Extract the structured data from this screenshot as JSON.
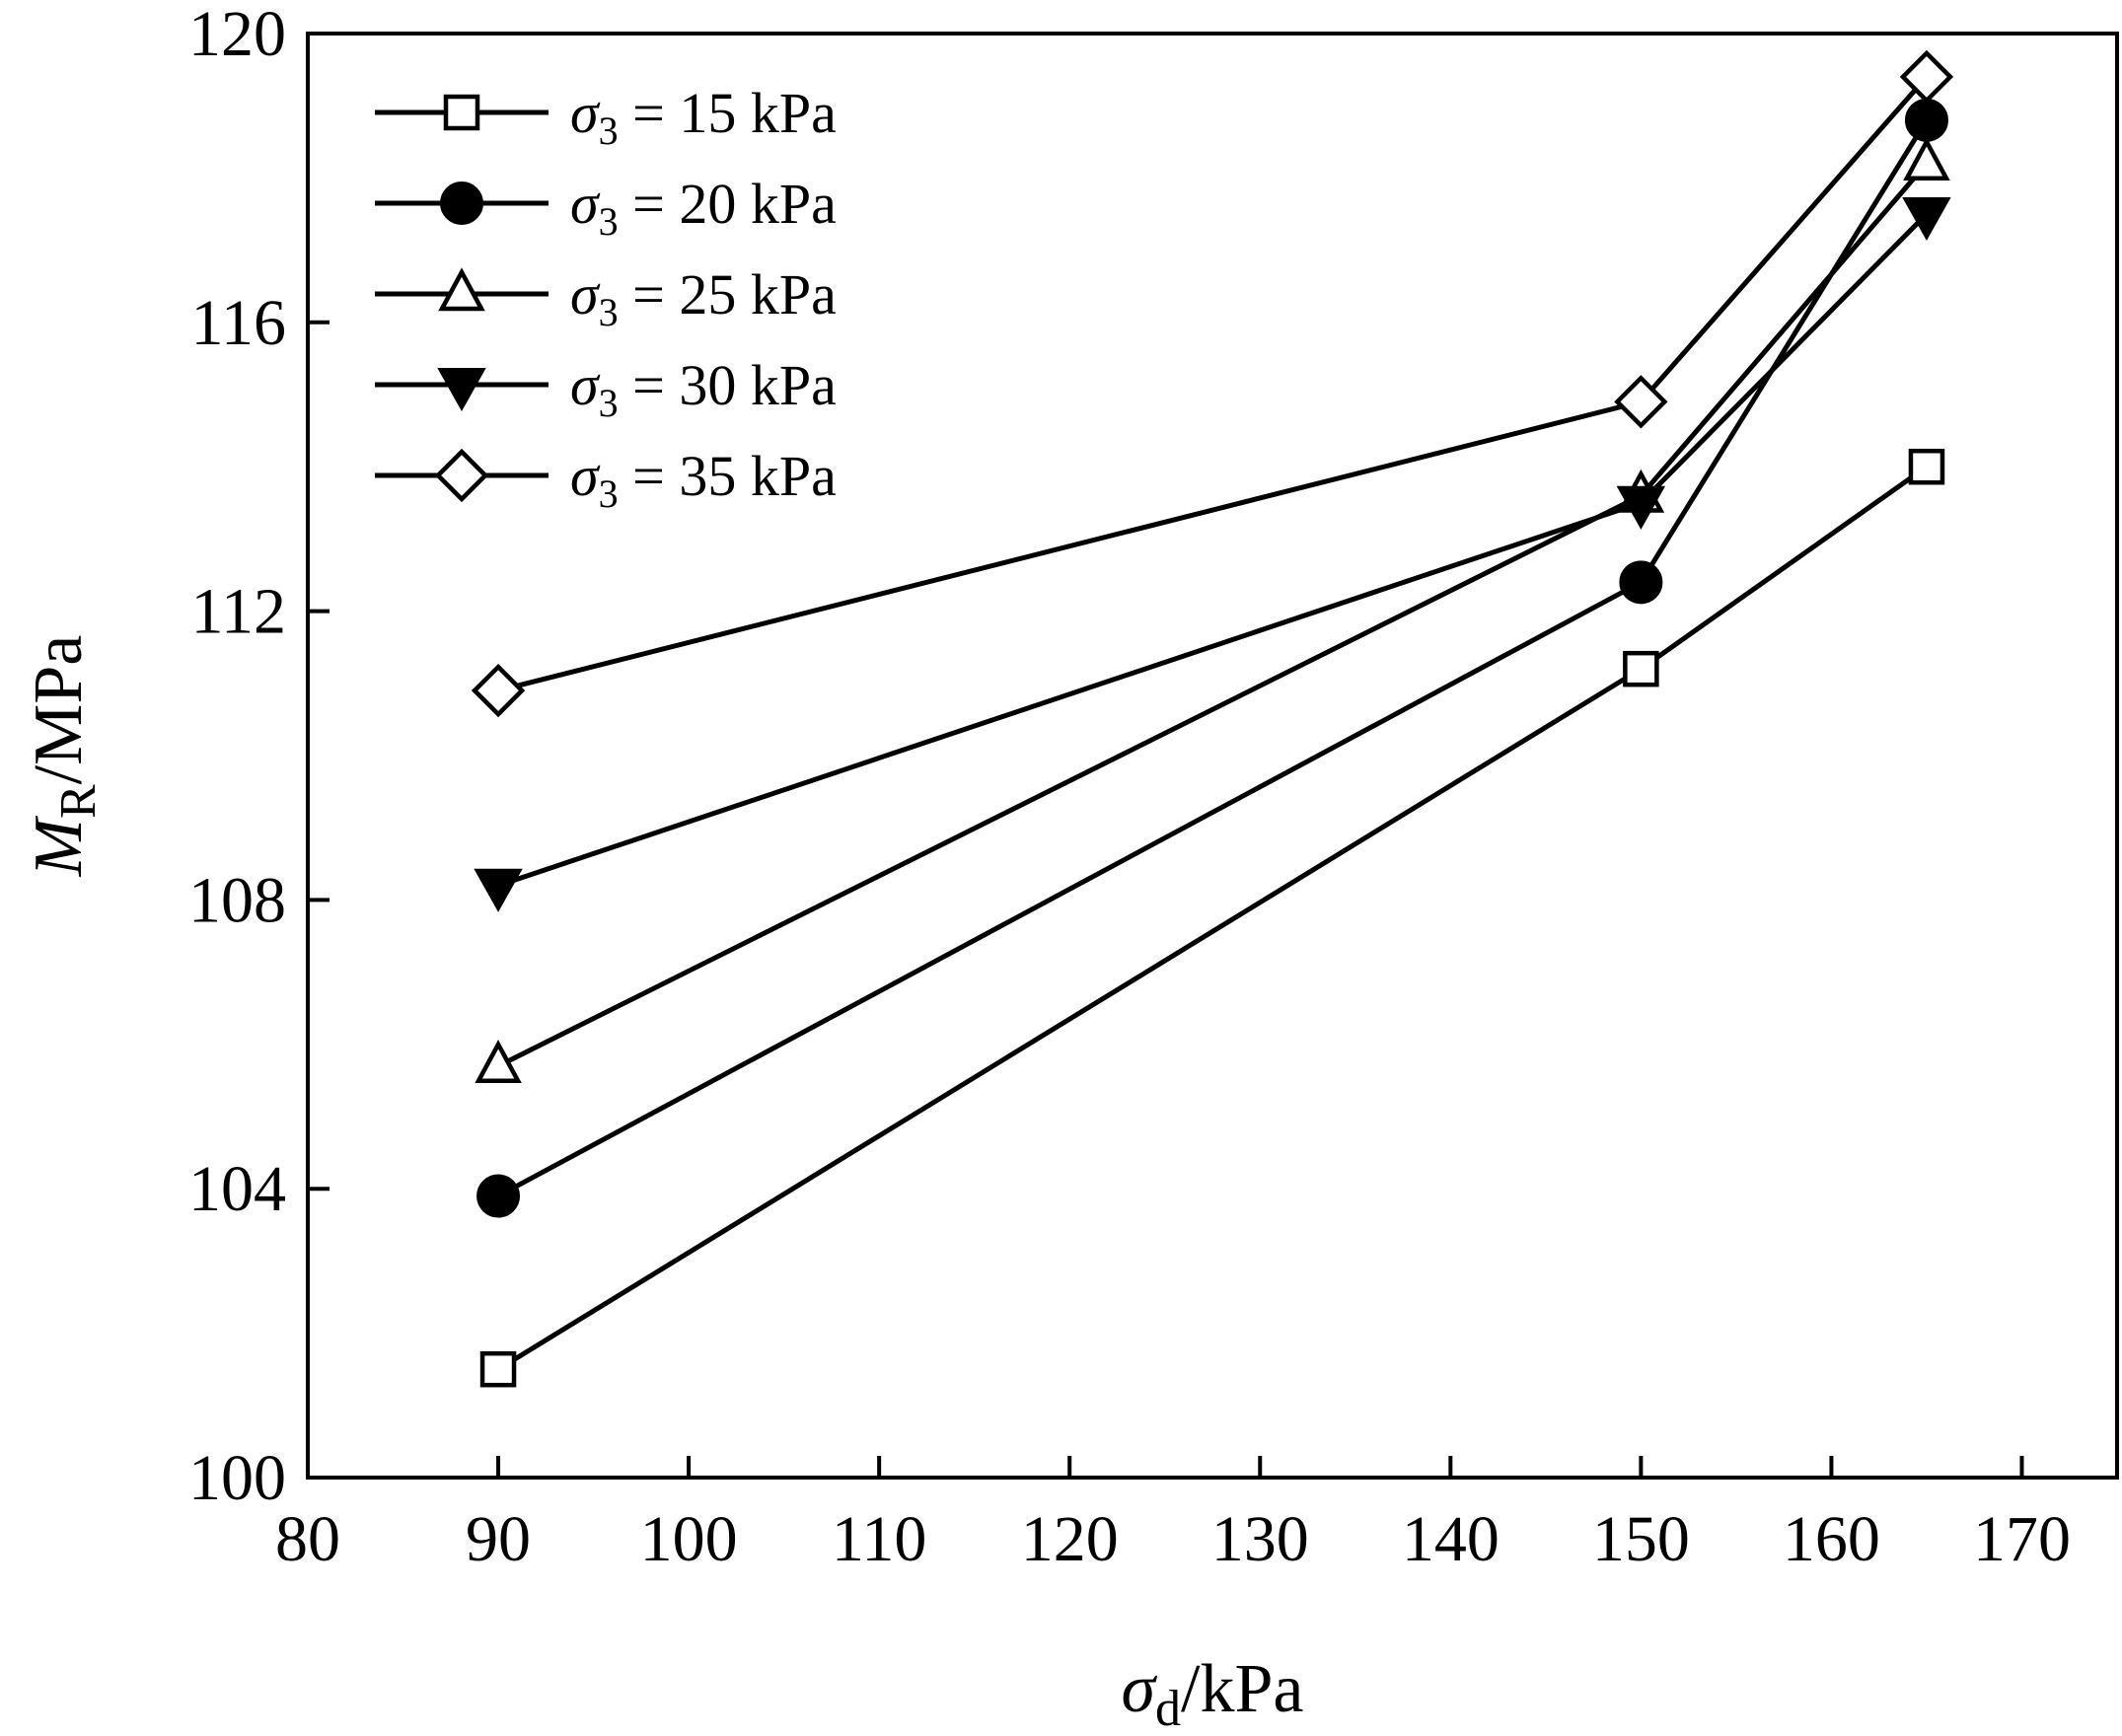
{
  "chart_data": {
    "type": "line",
    "xlabel": {
      "symbol": "σ",
      "sub": "d",
      "unit": "/kPa"
    },
    "ylabel": {
      "symbol": "M",
      "sub": "R",
      "unit": "/MPa"
    },
    "xlim": [
      80,
      175
    ],
    "ylim": [
      100,
      120
    ],
    "xticks": [
      80,
      90,
      100,
      110,
      120,
      130,
      140,
      150,
      160,
      170
    ],
    "yticks": [
      100,
      104,
      108,
      112,
      116,
      120
    ],
    "grid": false,
    "legend_position": "top-left",
    "series": [
      {
        "name": "15 kPa",
        "label_prefix": "σ",
        "label_sub": "3",
        "label_rest": " = 15 kPa",
        "marker": "square-open",
        "x": [
          90,
          150,
          165
        ],
        "y": [
          101.5,
          111.2,
          114.0
        ]
      },
      {
        "name": "20 kPa",
        "label_prefix": "σ",
        "label_sub": "3",
        "label_rest": " = 20 kPa",
        "marker": "circle-filled",
        "x": [
          90,
          150,
          165
        ],
        "y": [
          103.9,
          112.4,
          118.8
        ]
      },
      {
        "name": "25 kPa",
        "label_prefix": "σ",
        "label_sub": "3",
        "label_rest": " = 25 kPa",
        "marker": "triangle-up-open",
        "x": [
          90,
          150,
          165
        ],
        "y": [
          105.7,
          113.6,
          118.2
        ]
      },
      {
        "name": "30 kPa",
        "label_prefix": "σ",
        "label_sub": "3",
        "label_rest": " = 30 kPa",
        "marker": "triangle-down-filled",
        "x": [
          90,
          150,
          165
        ],
        "y": [
          108.2,
          113.5,
          117.5
        ]
      },
      {
        "name": "35 kPa",
        "label_prefix": "σ",
        "label_sub": "3",
        "label_rest": " = 35 kPa",
        "marker": "diamond-open",
        "x": [
          90,
          150,
          165
        ],
        "y": [
          110.9,
          114.9,
          119.4
        ]
      }
    ]
  }
}
